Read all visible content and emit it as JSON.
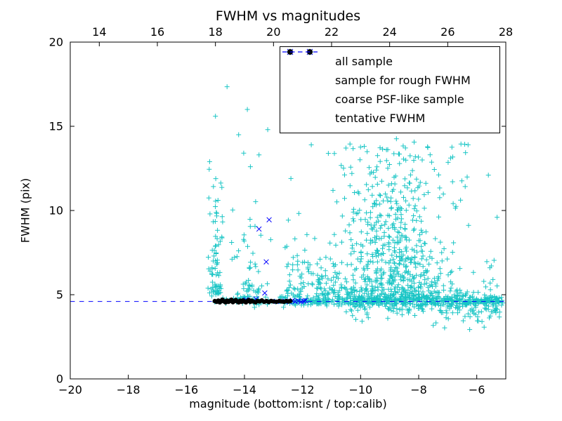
{
  "figure": {
    "background": "#ffffff",
    "frame_color": "#000000"
  },
  "chart_data": {
    "type": "scatter",
    "title": "FWHM vs magnitudes",
    "xlabel": "magnitude (bottom:isnt / top:calib)",
    "ylabel": "FWHM (pix)",
    "xlim": [
      -20,
      -5
    ],
    "ylim": [
      0,
      20
    ],
    "x_ticks": [
      -20,
      -18,
      -16,
      -14,
      -12,
      -10,
      -8,
      -6
    ],
    "x_tick_labels": [
      "−20",
      "−18",
      "−16",
      "−14",
      "−12",
      "−10",
      "−8",
      "−6"
    ],
    "y_ticks": [
      0,
      5,
      10,
      15,
      20
    ],
    "y_tick_labels": [
      "0",
      "5",
      "10",
      "15",
      "20"
    ],
    "top_axis": {
      "offset": 33,
      "ticks": [
        14,
        16,
        18,
        20,
        22,
        24,
        26,
        28
      ],
      "tick_labels": [
        "14",
        "16",
        "18",
        "20",
        "22",
        "24",
        "26",
        "28"
      ]
    },
    "tentative_fwhm": 4.6,
    "grid": false,
    "legend_position": "upper right",
    "legend": [
      {
        "label": "all sample",
        "marker": "plus",
        "color": "#00bfbf"
      },
      {
        "label": "sample for rough FWHM",
        "marker": "x",
        "color": "#0000ff"
      },
      {
        "label": "coarse PSF-like sample",
        "marker": "dot",
        "color": "#000000"
      },
      {
        "label": "tentative FWHM",
        "marker": "dash",
        "color": "#0000ff"
      }
    ],
    "series": {
      "all_sample": {
        "name": "all sample",
        "color": "#00bfbf",
        "marker": "plus",
        "seed": 1337,
        "clusters": [
          {
            "n": 420,
            "x": {
              "dist": "uniform",
              "min": -12.9,
              "max": -5.1
            },
            "y": {
              "dist": "gauss",
              "mean": 4.62,
              "sd": 0.16
            }
          },
          {
            "n": 200,
            "x": {
              "dist": "uniform",
              "min": -10.5,
              "max": -5.1
            },
            "y": {
              "dist": "gauss",
              "mean": 4.55,
              "sd": 0.38
            }
          },
          {
            "n": 70,
            "x": {
              "dist": "uniform",
              "min": -7.5,
              "max": -5.1
            },
            "y": {
              "dist": "gauss",
              "mean": 4.3,
              "sd": 0.6
            }
          },
          {
            "n": 60,
            "x": {
              "dist": "uniform",
              "min": -15.05,
              "max": -12.9
            },
            "y": {
              "dist": "gauss",
              "mean": 4.65,
              "sd": 0.14
            }
          },
          {
            "n": 280,
            "x": {
              "dist": "gauss",
              "mean": -8.9,
              "sd": 0.95
            },
            "y": {
              "dist": "exp",
              "min": 4.75,
              "scale": 1.9,
              "max": 14.3
            }
          },
          {
            "n": 220,
            "x": {
              "dist": "gauss",
              "mean": -8.85,
              "sd": 0.85
            },
            "y": {
              "dist": "uniform",
              "min": 4.9,
              "max": 10.8
            }
          },
          {
            "n": 60,
            "x": {
              "dist": "gauss",
              "mean": -8.8,
              "sd": 0.8
            },
            "y": {
              "dist": "uniform",
              "min": 10.5,
              "max": 14.2
            }
          },
          {
            "n": 80,
            "x": {
              "dist": "gauss",
              "mean": -15.0,
              "sd": 0.13
            },
            "y": {
              "dist": "exp",
              "min": 4.9,
              "scale": 2.8,
              "max": 13.6
            }
          },
          {
            "n": 50,
            "x": {
              "dist": "gauss",
              "mean": -13.8,
              "sd": 0.3
            },
            "y": {
              "dist": "exp",
              "min": 4.9,
              "scale": 2.4,
              "max": 16.3
            }
          },
          {
            "n": 110,
            "x": {
              "dist": "uniform",
              "min": -12.7,
              "max": -10.4
            },
            "y": {
              "dist": "exp",
              "min": 4.9,
              "scale": 1.5,
              "max": 12.5
            }
          },
          {
            "n": 45,
            "x": {
              "dist": "uniform",
              "min": -11.2,
              "max": -6.2
            },
            "y": {
              "dist": "uniform",
              "min": 9.5,
              "max": 14.3
            }
          },
          {
            "n": 20,
            "x": {
              "dist": "uniform",
              "min": -6.4,
              "max": -5.05
            },
            "y": {
              "dist": "uniform",
              "min": 3.6,
              "max": 7.2
            }
          }
        ],
        "extra_points": [
          [
            -14.6,
            17.35
          ],
          [
            -15.0,
            15.6
          ],
          [
            -13.9,
            16.0
          ],
          [
            -13.2,
            14.8
          ],
          [
            -13.5,
            13.3
          ],
          [
            -11.7,
            13.9
          ],
          [
            -12.4,
            11.9
          ],
          [
            -6.3,
            13.9
          ],
          [
            -5.6,
            12.1
          ],
          [
            -5.3,
            9.6
          ],
          [
            -15.2,
            12.9
          ],
          [
            -10.3,
            12.2
          ],
          [
            -14.2,
            14.5
          ]
        ]
      },
      "rough_fwhm": {
        "name": "sample for rough FWHM",
        "color": "#0000ff",
        "marker": "x",
        "points": [
          [
            -13.95,
            4.7
          ],
          [
            -13.6,
            4.75
          ],
          [
            -13.3,
            5.1
          ],
          [
            -12.9,
            4.6
          ],
          [
            -12.6,
            4.62
          ],
          [
            -12.45,
            4.58
          ],
          [
            -12.35,
            4.65
          ],
          [
            -12.25,
            4.6
          ],
          [
            -12.15,
            4.63
          ],
          [
            -12.05,
            4.58
          ],
          [
            -11.95,
            4.62
          ],
          [
            -11.9,
            4.66
          ],
          [
            -13.5,
            8.9
          ],
          [
            -13.15,
            9.45
          ],
          [
            -13.25,
            6.95
          ]
        ]
      },
      "psf_like": {
        "name": "coarse PSF-like sample",
        "color": "#000000",
        "marker": "dot",
        "points": [
          [
            -15.02,
            4.62
          ],
          [
            -14.96,
            4.58
          ],
          [
            -14.9,
            4.65
          ],
          [
            -14.85,
            4.55
          ],
          [
            -14.8,
            4.62
          ],
          [
            -14.76,
            4.7
          ],
          [
            -14.7,
            4.6
          ],
          [
            -14.65,
            4.55
          ],
          [
            -14.6,
            4.65
          ],
          [
            -14.55,
            4.58
          ],
          [
            -14.5,
            4.63
          ],
          [
            -14.45,
            4.7
          ],
          [
            -14.4,
            4.56
          ],
          [
            -14.35,
            4.62
          ],
          [
            -14.3,
            4.68
          ],
          [
            -14.25,
            4.6
          ],
          [
            -14.2,
            4.55
          ],
          [
            -14.15,
            4.64
          ],
          [
            -14.1,
            4.58
          ],
          [
            -14.05,
            4.66
          ],
          [
            -14.0,
            4.6
          ],
          [
            -13.95,
            4.55
          ],
          [
            -13.9,
            4.62
          ],
          [
            -13.85,
            4.68
          ],
          [
            -13.8,
            4.58
          ],
          [
            -13.75,
            4.64
          ],
          [
            -13.7,
            4.6
          ],
          [
            -13.62,
            4.55
          ],
          [
            -13.55,
            4.63
          ],
          [
            -13.48,
            4.6
          ],
          [
            -13.4,
            4.66
          ],
          [
            -13.32,
            4.58
          ],
          [
            -13.24,
            4.62
          ],
          [
            -13.16,
            4.57
          ],
          [
            -13.08,
            4.63
          ],
          [
            -13.0,
            4.6
          ],
          [
            -12.9,
            4.58
          ],
          [
            -12.8,
            4.62
          ],
          [
            -12.72,
            4.6
          ],
          [
            -12.64,
            4.58
          ],
          [
            -12.56,
            4.62
          ],
          [
            -12.48,
            4.6
          ],
          [
            -12.42,
            4.63
          ]
        ]
      }
    }
  }
}
